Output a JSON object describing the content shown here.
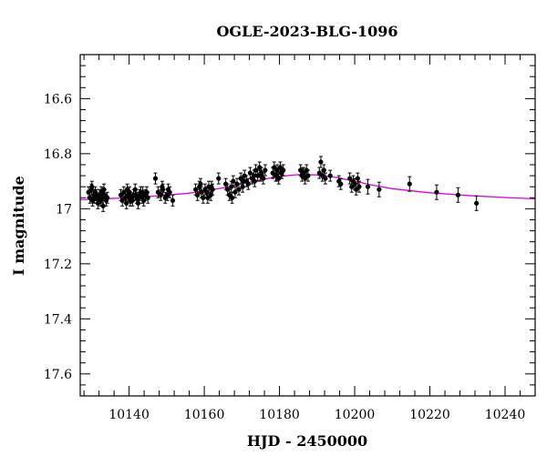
{
  "chart_data": {
    "type": "scatter",
    "title": "OGLE-2023-BLG-1096",
    "xlabel": "HJD - 2450000",
    "ylabel": "I magnitude",
    "xlim": [
      10127,
      10248
    ],
    "ylim": [
      17.68,
      16.44
    ],
    "y_inverted": true,
    "x_ticks": [
      10140,
      10160,
      10180,
      10200,
      10220,
      10240
    ],
    "x_tick_labels": [
      "10140",
      "10160",
      "10180",
      "10200",
      "10220",
      "10240"
    ],
    "y_ticks": [
      16.6,
      16.8,
      17,
      17.2,
      17.4,
      17.6
    ],
    "y_tick_labels": [
      "16.6",
      "16.8",
      "17",
      "17.2",
      "17.4",
      "17.6"
    ],
    "x_minor_step": 4,
    "y_minor_step": 0.04,
    "grid": false,
    "legend": "none",
    "colors": {
      "points": "#000000",
      "model": "#e000e0",
      "frame": "#000000"
    },
    "model_curve": {
      "x": [
        10127,
        10135,
        10145,
        10155,
        10160,
        10165,
        10170,
        10175,
        10180,
        10185,
        10190,
        10195,
        10200,
        10205,
        10210,
        10220,
        10230,
        10240,
        10248
      ],
      "y": [
        16.967,
        16.963,
        16.956,
        16.945,
        16.936,
        16.924,
        16.909,
        16.895,
        16.882,
        16.876,
        16.877,
        16.886,
        16.9,
        16.915,
        16.927,
        16.942,
        16.952,
        16.959,
        16.964
      ]
    },
    "series": [
      {
        "x": [
          10129.2,
          10129.6,
          10130.0,
          10130.3,
          10130.7,
          10131.0,
          10131.4,
          10131.7,
          10132.1,
          10132.4,
          10132.8,
          10133.1,
          10133.5,
          10133.9,
          10134.2,
          10130.1,
          10131.3,
          10132.6,
          10133.3,
          10130.8,
          10132.9,
          10137.8,
          10138.2,
          10138.6,
          10139.0,
          10139.3,
          10139.7,
          10140.1,
          10140.5,
          10140.9,
          10141.2,
          10141.6,
          10142.0,
          10142.4,
          10142.8,
          10143.1,
          10143.5,
          10143.9,
          10144.3,
          10144.7,
          10145.0,
          10139.5,
          10141.8,
          10143.6,
          10140.3,
          10142.6,
          10147.0,
          10147.7,
          10148.4,
          10149.0,
          10149.6,
          10150.2,
          10150.8,
          10151.6,
          10148.8,
          10150.4,
          10157.7,
          10158.2,
          10158.7,
          10159.2,
          10159.7,
          10160.2,
          10160.7,
          10161.2,
          10161.7,
          10162.2,
          10159.0,
          10160.9,
          10161.9,
          10163.8,
          10165.7,
          10166.2,
          10166.7,
          10167.2,
          10167.7,
          10168.2,
          10168.7,
          10169.2,
          10169.7,
          10170.2,
          10170.7,
          10171.2,
          10171.7,
          10172.2,
          10172.7,
          10173.2,
          10173.7,
          10174.2,
          10174.7,
          10175.2,
          10175.7,
          10176.2,
          10167.4,
          10170.4,
          10173.4,
          10175.0,
          10178.2,
          10178.6,
          10179.0,
          10179.4,
          10179.8,
          10180.2,
          10180.6,
          10181.0,
          10179.2,
          10180.4,
          10185.6,
          10186.0,
          10186.4,
          10186.8,
          10187.2,
          10187.6,
          10186.2,
          10190.6,
          10191.0,
          10191.4,
          10191.8,
          10192.2,
          10193.5,
          10195.8,
          10196.3,
          10198.7,
          10199.2,
          10199.6,
          10200.0,
          10200.4,
          10200.8,
          10201.2,
          10203.5,
          10206.5,
          10214.6,
          10221.8,
          10227.5,
          10232.4
        ],
        "y": [
          16.94,
          16.96,
          16.93,
          16.97,
          16.95,
          16.94,
          16.96,
          16.98,
          16.95,
          16.97,
          16.96,
          16.99,
          16.95,
          16.97,
          16.96,
          16.92,
          16.95,
          16.94,
          16.93,
          16.96,
          16.95,
          16.95,
          16.97,
          16.94,
          16.96,
          16.98,
          16.95,
          16.94,
          16.96,
          16.97,
          16.95,
          16.93,
          16.96,
          16.98,
          16.95,
          16.94,
          16.96,
          16.97,
          16.95,
          16.94,
          16.96,
          16.93,
          16.95,
          16.94,
          16.97,
          16.96,
          16.89,
          16.94,
          16.95,
          16.93,
          16.96,
          16.95,
          16.94,
          16.97,
          16.92,
          16.93,
          16.93,
          16.95,
          16.92,
          16.94,
          16.96,
          16.93,
          16.94,
          16.92,
          16.95,
          16.93,
          16.91,
          16.96,
          16.92,
          16.89,
          16.91,
          16.93,
          16.95,
          16.92,
          16.9,
          16.94,
          16.91,
          16.93,
          16.89,
          16.92,
          16.88,
          16.9,
          16.91,
          16.87,
          16.89,
          16.88,
          16.86,
          16.88,
          16.85,
          16.87,
          16.89,
          16.86,
          16.96,
          16.9,
          16.9,
          16.88,
          16.87,
          16.85,
          16.88,
          16.86,
          16.89,
          16.85,
          16.87,
          16.86,
          16.88,
          16.87,
          16.86,
          16.88,
          16.87,
          16.89,
          16.86,
          16.88,
          16.87,
          16.87,
          16.83,
          16.88,
          16.86,
          16.89,
          16.88,
          16.9,
          16.91,
          16.89,
          16.92,
          16.9,
          16.91,
          16.93,
          16.89,
          16.92,
          16.92,
          16.93,
          16.91,
          16.94,
          16.95,
          16.98
        ]
      }
    ]
  }
}
